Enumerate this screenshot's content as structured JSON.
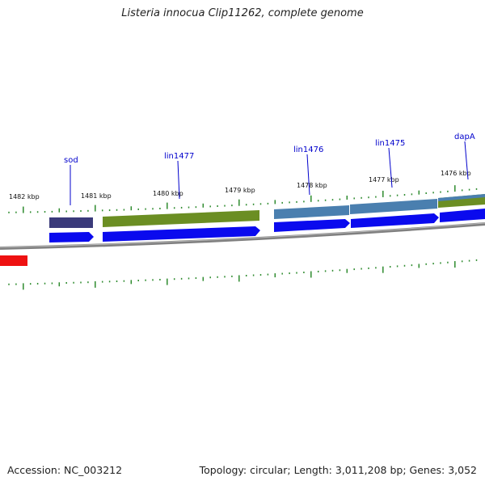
{
  "title": "Listeria innocua Clip11262, complete genome",
  "accession_text": "Accession: NC_003212",
  "topology_text": "Topology: circular; Length: 3,011,208 bp; Genes: 3,052",
  "tick_labels": [
    "1482 kbp",
    "1481 kbp",
    "1480 kbp",
    "1479 kbp",
    "1478 kbp",
    "1477 kbp",
    "1476 kbp"
  ],
  "gene_labels": [
    "sod",
    "lin1477",
    "lin1476",
    "lin1475",
    "dapA"
  ],
  "colors": {
    "backbone": "#808080",
    "cds": "#0a0aee",
    "feature_purple": "#3a3a7a",
    "feature_olive": "#6b8e23",
    "feature_steel": "#4a7faf",
    "tick": "#2e8b2e",
    "label": "#0000cc",
    "highlight": "#ee1111"
  }
}
